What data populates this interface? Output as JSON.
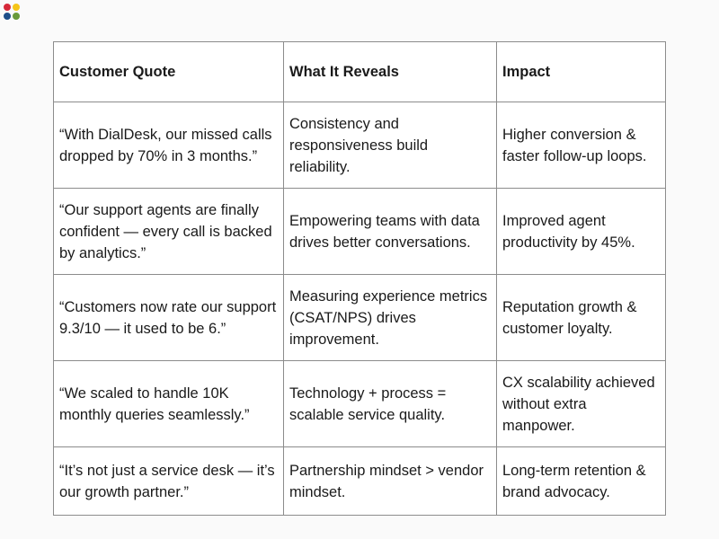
{
  "logo": {
    "colors": [
      "#d62839",
      "#f5c518",
      "#1d4e89",
      "#6a9a3a"
    ]
  },
  "table": {
    "headers": [
      "Customer Quote",
      "What It Reveals",
      "Impact"
    ],
    "rows": [
      {
        "quote": "“With DialDesk, our missed calls dropped by 70% in 3 months.”",
        "reveals": "Consistency and responsiveness build reliability.",
        "impact": "Higher conversion & faster follow-up loops."
      },
      {
        "quote": "“Our support agents are finally confident — every call is backed by analytics.”",
        "reveals": "Empowering teams with data drives better conversations.",
        "impact": "Improved agent productivity by 45%."
      },
      {
        "quote": "“Customers now rate our support 9.3/10 — it used to be 6.”",
        "reveals": "Measuring experience metrics (CSAT/NPS) drives improvement.",
        "impact": "Reputation growth & customer loyalty."
      },
      {
        "quote": "“We scaled to handle 10K monthly queries seamlessly.”",
        "reveals": "Technology + process = scalable service quality.",
        "impact": "CX scalability achieved without extra manpower."
      },
      {
        "quote": "“It’s not just a service desk — it’s our growth partner.”",
        "reveals": "Partnership mindset > vendor mindset.",
        "impact": "Long-term retention & brand advocacy."
      }
    ]
  }
}
